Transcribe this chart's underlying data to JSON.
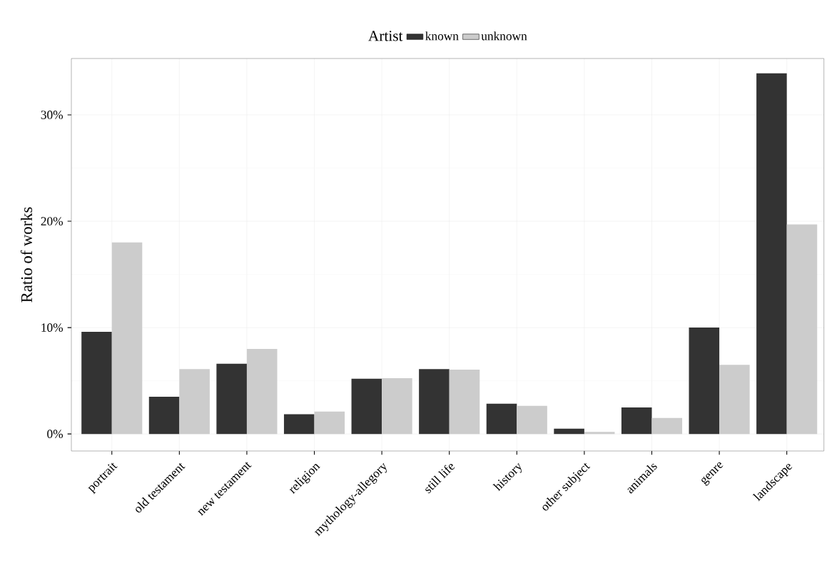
{
  "chart_data": {
    "type": "bar",
    "ylabel": "Ratio of works",
    "legend_title": "Artist",
    "categories": [
      "portrait",
      "old testament",
      "new testament",
      "religion",
      "mythology-allegory",
      "still life",
      "history",
      "other subject",
      "animals",
      "genre",
      "landscape"
    ],
    "series": [
      {
        "name": "known",
        "color": "#333333",
        "values": [
          9.6,
          3.5,
          6.6,
          1.85,
          5.2,
          6.1,
          2.85,
          0.5,
          2.5,
          10.0,
          33.9
        ]
      },
      {
        "name": "unknown",
        "color": "#cccccc",
        "values": [
          18.0,
          6.1,
          8.0,
          2.1,
          5.25,
          6.05,
          2.65,
          0.2,
          1.5,
          6.5,
          19.7
        ]
      }
    ],
    "ylim": [
      -1.6,
      35.3
    ],
    "yticks": [
      {
        "value": 0,
        "label": "0%"
      },
      {
        "value": 10,
        "label": "10%"
      },
      {
        "value": 20,
        "label": "20%"
      },
      {
        "value": 30,
        "label": "30%"
      }
    ],
    "grid": true,
    "legend": "top"
  }
}
